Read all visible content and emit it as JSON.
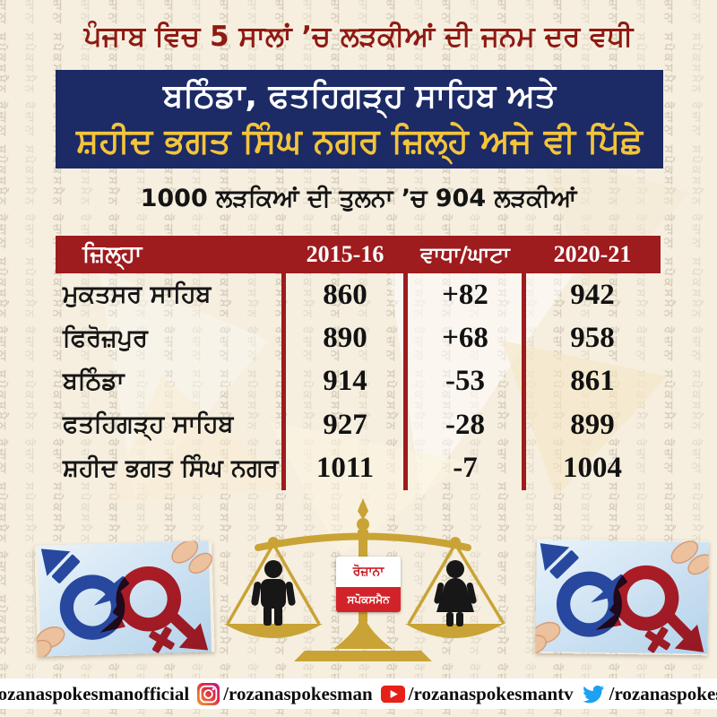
{
  "header": {
    "title": "ਪੰਜਾਬ ਵਿਚ 5 ਸਾਲਾਂ ’ਚ ਲੜਕੀਆਂ ਦੀ ਜਨਮ ਦਰ ਵਧੀ",
    "banner_line1": "ਬਠਿੰਡਾ, ਫਤਹਿਗੜ੍ਹ ਸਾਹਿਬ ਅਤੇ",
    "banner_line2": "ਸ਼ਹੀਦ ਭਗਤ ਸਿੰਘ ਨਗਰ ਜ਼ਿਲ੍ਹੇ ਅਜੇ ਵੀ ਪਿੱਛੇ",
    "subtitle": "1000 ਲੜਕਿਆਂ ਦੀ ਤੁਲਨਾ ’ਚ 904 ਲੜਕੀਆਂ"
  },
  "table": {
    "headers": [
      "ਜ਼ਿਲ੍ਹਾ",
      "2015-16",
      "ਵਾਧਾ/ਘਾਟਾ",
      "2020-21"
    ],
    "rows": [
      {
        "district": "ਮੁਕਤਸਰ ਸਾਹਿਬ",
        "y2015": "860",
        "change": "+82",
        "y2020": "942"
      },
      {
        "district": "ਫਿਰੋਜ਼ਪੁਰ",
        "y2015": "890",
        "change": "+68",
        "y2020": "958"
      },
      {
        "district": "ਬਠਿੰਡਾ",
        "y2015": "914",
        "change": "-53",
        "y2020": "861"
      },
      {
        "district": "ਫਤਹਿਗੜ੍ਹ ਸਾਹਿਬ",
        "y2015": "927",
        "change": "-28",
        "y2020": "899"
      },
      {
        "district": "ਸ਼ਹੀਦ ਭਗਤ ਸਿੰਘ ਨਗਰ",
        "y2015": "1011",
        "change": "-7",
        "y2020": "1004"
      }
    ]
  },
  "chart_data": {
    "type": "table",
    "title": "ਪੰਜਾਬ ਵਿਚ 5 ਸਾਲਾਂ ’ਚ ਲੜਕੀਆਂ ਦੀ ਜਨਮ ਦਰ ਵਧੀ",
    "subtitle": "1000 ਲੜਕਿਆਂ ਦੀ ਤੁਲਨਾ ’ਚ 904 ਲੜਕੀਆਂ",
    "highlight": "ਬਠਿੰਡਾ, ਫਤਹਿਗੜ੍ਹ ਸਾਹਿਬ ਅਤੇ ਸ਼ਹੀਦ ਭਗਤ ਸਿੰਘ ਨਗਰ ਜ਼ਿਲ੍ਹੇ ਅਜੇ ਵੀ ਪਿੱਛੇ",
    "columns": [
      "ਜ਼ਿਲ੍ਹਾ",
      "2015-16",
      "ਵਾਧਾ/ਘਾਟਾ",
      "2020-21"
    ],
    "rows": [
      [
        "ਮੁਕਤਸਰ ਸਾਹਿਬ",
        860,
        82,
        942
      ],
      [
        "ਫਿਰੋਜ਼ਪੁਰ",
        890,
        68,
        958
      ],
      [
        "ਬਠਿੰਡਾ",
        914,
        -53,
        861
      ],
      [
        "ਫਤਹਿਗੜ੍ਹ ਸਾਹਿਬ",
        927,
        -28,
        899
      ],
      [
        "ਸ਼ਹੀਦ ਭਗਤ ਸਿੰਘ ਨਗਰ",
        1011,
        -7,
        1004
      ]
    ]
  },
  "scale_logo": {
    "line1": "ਰੋਜ਼ਾਨਾ",
    "line2": "ਸਪੋਕਸਮੈਨ"
  },
  "footer": {
    "items": [
      {
        "network": "facebook",
        "handle": "/rozanaspokesmanofficial"
      },
      {
        "network": "instagram",
        "handle": "/rozanaspokesman"
      },
      {
        "network": "youtube",
        "handle": "/rozanaspokesmantv"
      },
      {
        "network": "twitter",
        "handle": "/rozanaspokesman"
      }
    ]
  },
  "watermark": {
    "text": "ਰੋਜ਼ਾਨਾ ਸਪੋਕਸਮੈਨ"
  },
  "colors": {
    "background": "#f6efe0",
    "title_red": "#8e1a12",
    "banner_navy": "#1c2a66",
    "banner_yellow": "#f3c43b",
    "table_header_red": "#9e1b1e",
    "scale_gold": "#c9a335",
    "logo_red": "#d2232a",
    "symbol_blue": "#27489e",
    "symbol_red": "#d01f27",
    "facebook_blue": "#3b5998",
    "youtube_red": "#e62117",
    "twitter_blue": "#1da1f2"
  }
}
